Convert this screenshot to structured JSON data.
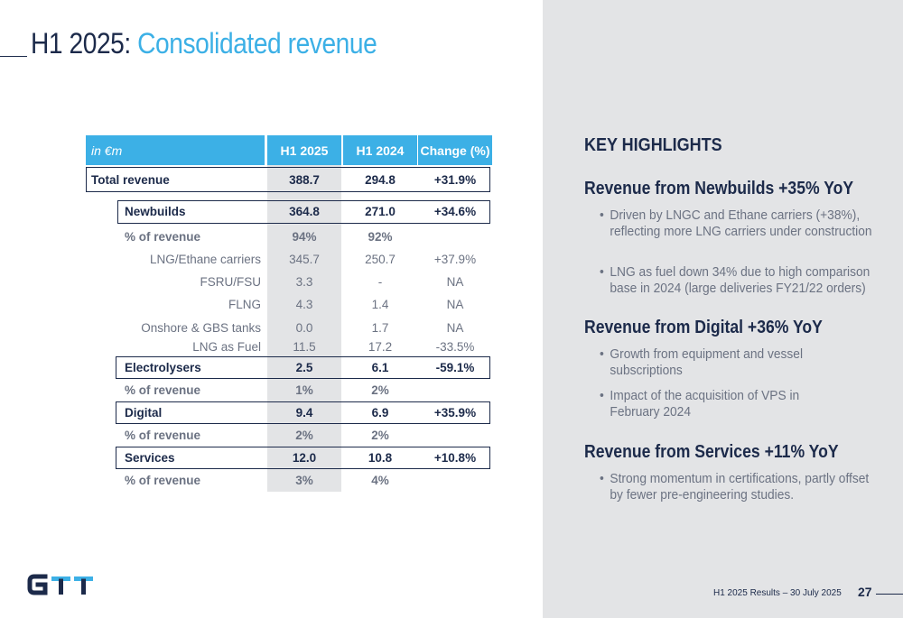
{
  "title": {
    "part1": "H1 2025:",
    "part2": "Consolidated revenue"
  },
  "table": {
    "header": {
      "unit": "in €m",
      "col1": "H1 2025",
      "col2": "H1 2024",
      "col3": "Change (%)"
    },
    "rows": [
      {
        "label": "Total revenue",
        "v1": "388.7",
        "v2": "294.8",
        "v3": "+31.9%"
      },
      {
        "label": "Newbuilds",
        "v1": "364.8",
        "v2": "271.0",
        "v3": "+34.6%"
      },
      {
        "label": "% of revenue",
        "v1": "94%",
        "v2": "92%",
        "v3": ""
      },
      {
        "label": "LNG/Ethane carriers",
        "v1": "345.7",
        "v2": "250.7",
        "v3": "+37.9%"
      },
      {
        "label": "FSRU/FSU",
        "v1": "3.3",
        "v2": "-",
        "v3": "NA"
      },
      {
        "label": "FLNG",
        "v1": "4.3",
        "v2": "1.4",
        "v3": "NA"
      },
      {
        "label": "Onshore & GBS tanks",
        "v1": "0.0",
        "v2": "1.7",
        "v3": "NA"
      },
      {
        "label": "LNG as Fuel",
        "v1": "11.5",
        "v2": "17.2",
        "v3": "-33.5%"
      },
      {
        "label": "Electrolysers",
        "v1": "2.5",
        "v2": "6.1",
        "v3": "-59.1%"
      },
      {
        "label": "% of revenue",
        "v1": "1%",
        "v2": "2%",
        "v3": ""
      },
      {
        "label": "Digital",
        "v1": "9.4",
        "v2": "6.9",
        "v3": "+35.9%"
      },
      {
        "label": "% of revenue",
        "v1": "2%",
        "v2": "2%",
        "v3": ""
      },
      {
        "label": "Services",
        "v1": "12.0",
        "v2": "10.8",
        "v3": "+10.8%"
      },
      {
        "label": "% of revenue",
        "v1": "3%",
        "v2": "4%",
        "v3": ""
      }
    ]
  },
  "highlights": {
    "heading": "KEY HIGHLIGHTS",
    "sections": [
      {
        "title": "Revenue from Newbuilds +35% YoY",
        "bullets": [
          "Driven by LNGC and Ethane carriers (+38%), reflecting more LNG carriers under construction",
          "LNG as fuel down 34% due to high comparison base in 2024 (large deliveries FY21/22 orders)"
        ]
      },
      {
        "title": "Revenue from Digital +36% YoY",
        "bullets": [
          "Growth from equipment and vessel subscriptions",
          "Impact of the acquisition of VPS in February 2024"
        ]
      },
      {
        "title": "Revenue from Services +11% YoY",
        "bullets": [
          "Strong momentum in certifications, partly offset by fewer pre-engineering studies."
        ]
      }
    ]
  },
  "footer": {
    "text": "H1 2025 Results – 30 July 2025",
    "page": "27"
  },
  "logo": {
    "text": "GTT"
  },
  "colors": {
    "navy": "#1c2a4a",
    "accent": "#3cb0e6",
    "panel": "#e3e4e6",
    "grey_text": "#6b7282"
  }
}
